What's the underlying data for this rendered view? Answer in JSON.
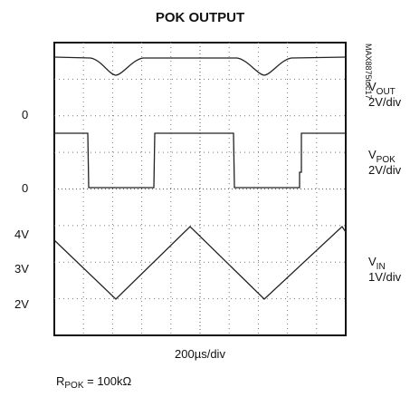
{
  "title": "POK OUTPUT",
  "figure_id": "MAX8875toc17",
  "channels": [
    {
      "name": {
        "main": "V",
        "sub": "OUT"
      },
      "scale": "2V/div"
    },
    {
      "name": {
        "main": "V",
        "sub": "POK"
      },
      "scale": "2V/div"
    },
    {
      "name": {
        "main": "V",
        "sub": "IN"
      },
      "scale": "1V/div"
    }
  ],
  "left_labels": [
    "0",
    "0",
    "4V",
    "3V",
    "2V"
  ],
  "time_scale": "200µs/div",
  "condition": {
    "main": "R",
    "sub": "POK",
    "rest": " = 100kΩ"
  }
}
